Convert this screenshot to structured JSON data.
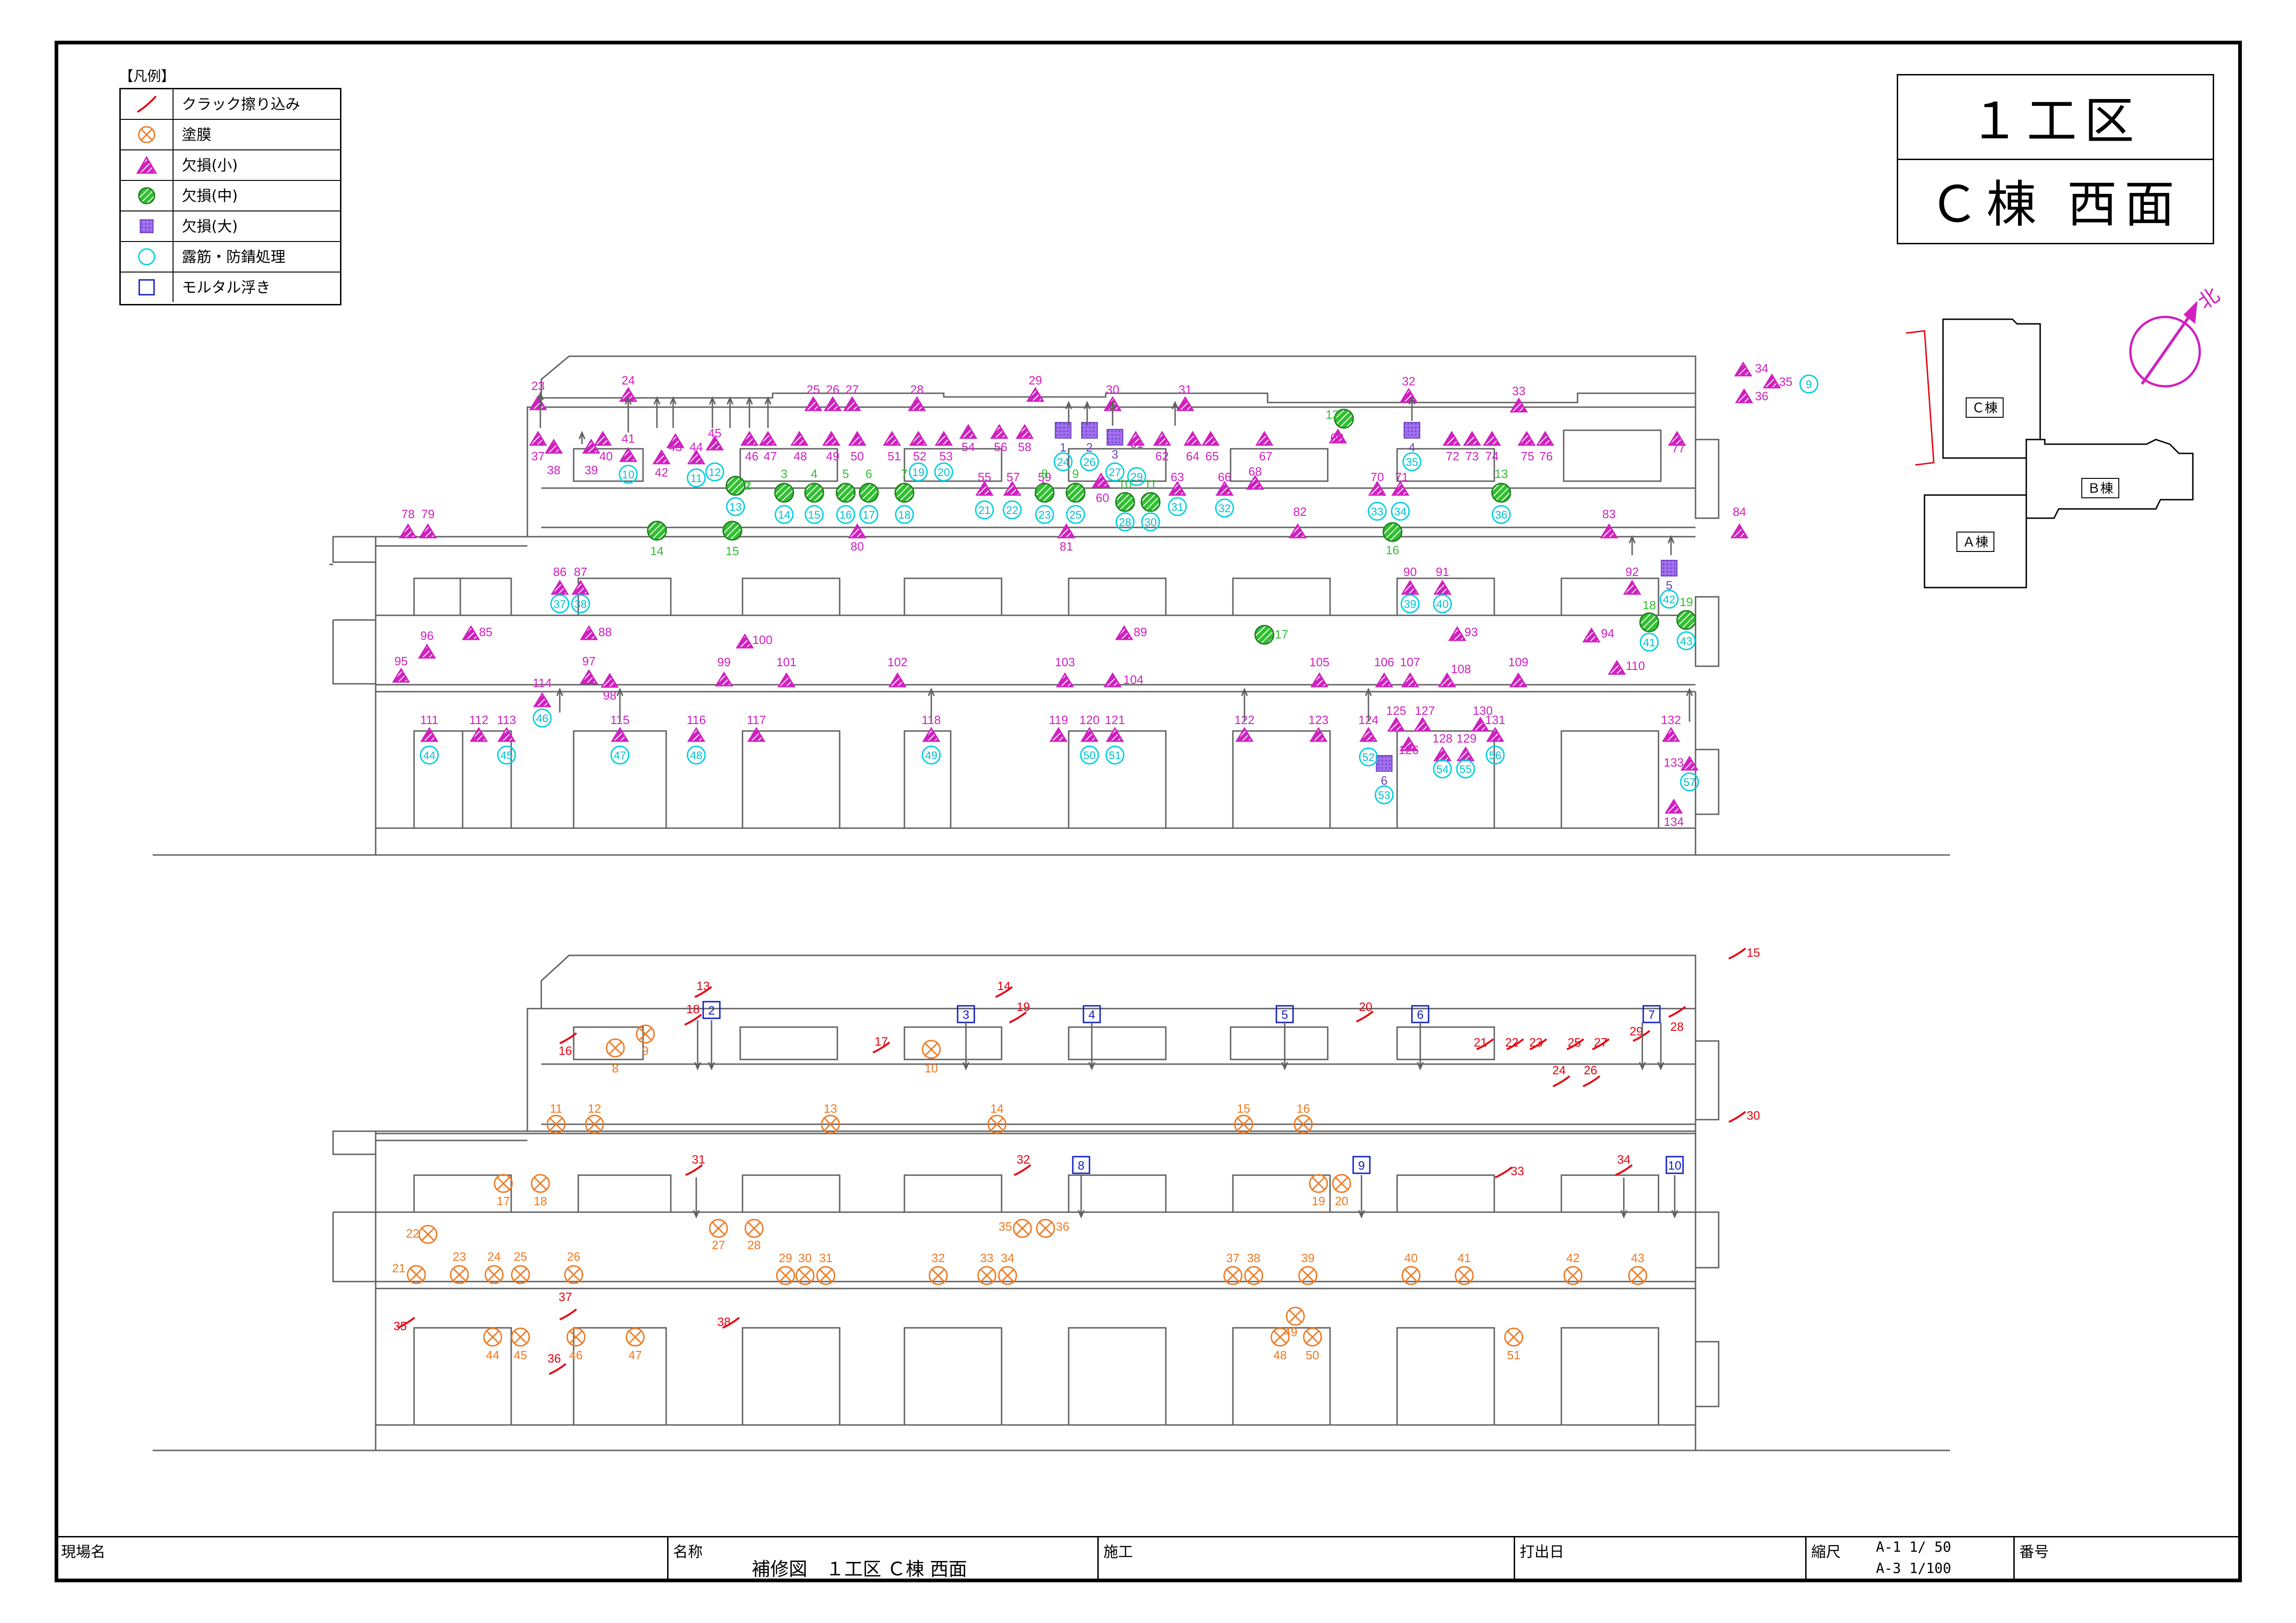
{
  "title": {
    "line1": "１工区",
    "line2": "Ｃ棟 西面"
  },
  "legend": {
    "caption": "【凡例】",
    "items": [
      {
        "label": "クラック擦り込み",
        "icon": "crack-line-icon",
        "color": "#e8000f"
      },
      {
        "label": "塗膜",
        "icon": "circle-x-icon",
        "color": "#f07820"
      },
      {
        "label": "欠損(小)",
        "icon": "triangle-icon",
        "color": "#d020c0"
      },
      {
        "label": "欠損(中)",
        "icon": "green-hatched-circle-icon",
        "color": "#30c030"
      },
      {
        "label": "欠損(大)",
        "icon": "purple-square-icon",
        "color": "#9050e0"
      },
      {
        "label": "露筋・防錆処理",
        "icon": "cyan-circle-icon",
        "color": "#00d0e0"
      },
      {
        "label": "モルタル浮き",
        "icon": "blue-square-icon",
        "color": "#1020c0"
      }
    ]
  },
  "key_plan": {
    "block_c": "Ｃ棟",
    "block_b": "Ｂ棟",
    "block_a": "Ａ棟",
    "north": "北"
  },
  "footer": {
    "site_label": "現場名",
    "name_label": "名称",
    "name_value": "補修図　１工区 Ｃ棟 西面",
    "builder_label": "施工",
    "print_date_label": "打出日",
    "scale_label": "縮尺",
    "scale_a1": "A-1 1/ 50",
    "scale_a3": "A-3 1/100",
    "number_label": "番号"
  },
  "upper_elevation": {
    "small_defect_numbers": [
      "23",
      "24",
      "25",
      "26",
      "27",
      "28",
      "29",
      "30",
      "31",
      "32",
      "33",
      "34",
      "35",
      "36",
      "37",
      "38",
      "39",
      "40",
      "41",
      "42",
      "43",
      "44",
      "45",
      "46",
      "47",
      "48",
      "49",
      "50",
      "51",
      "52",
      "53",
      "54",
      "55",
      "56",
      "57",
      "58",
      "59",
      "60",
      "61",
      "62",
      "63",
      "64",
      "65",
      "66",
      "67",
      "68",
      "69",
      "70",
      "71",
      "72",
      "73",
      "74",
      "75",
      "76",
      "77",
      "78",
      "79",
      "80",
      "81",
      "82",
      "83",
      "84",
      "85",
      "86",
      "87",
      "88",
      "89",
      "90",
      "91",
      "92",
      "93",
      "94",
      "95",
      "96",
      "97",
      "98",
      "99",
      "100",
      "101",
      "102",
      "103",
      "104",
      "105",
      "106",
      "107",
      "108",
      "109",
      "110",
      "111",
      "112",
      "113",
      "114",
      "115",
      "116",
      "117",
      "118",
      "119",
      "120",
      "121",
      "122",
      "123",
      "124",
      "125",
      "126",
      "127",
      "128",
      "129",
      "130",
      "131",
      "132",
      "133",
      "134"
    ],
    "medium_defect_numbers": [
      "1",
      "2",
      "3",
      "4",
      "5",
      "6",
      "7",
      "8",
      "9",
      "10",
      "11",
      "12",
      "13",
      "14",
      "15",
      "16",
      "17",
      "18",
      "19"
    ],
    "large_defect_numbers": [
      "1",
      "2",
      "3",
      "4",
      "5",
      "6"
    ],
    "rebar_numbers": [
      "9",
      "10",
      "11",
      "12",
      "13",
      "14",
      "15",
      "16",
      "17",
      "18",
      "19",
      "20",
      "21",
      "22",
      "23",
      "24",
      "25",
      "26",
      "27",
      "28",
      "29",
      "30",
      "31",
      "32",
      "33",
      "34",
      "35",
      "36",
      "37",
      "38",
      "39",
      "40",
      "41",
      "42",
      "43",
      "44",
      "45",
      "46",
      "47",
      "48",
      "49",
      "50",
      "51",
      "52",
      "53",
      "54",
      "55",
      "56",
      "57"
    ]
  },
  "lower_elevation": {
    "crack_numbers": [
      "13",
      "14",
      "15",
      "16",
      "17",
      "18",
      "19",
      "20",
      "21",
      "22",
      "23",
      "24",
      "25",
      "26",
      "27",
      "28",
      "29",
      "30",
      "31",
      "32",
      "33",
      "34",
      "35",
      "36",
      "37",
      "38"
    ],
    "coating_numbers": [
      "8",
      "9",
      "10",
      "11",
      "12",
      "13",
      "14",
      "15",
      "16",
      "17",
      "18",
      "19",
      "20",
      "21",
      "22",
      "23",
      "24",
      "25",
      "26",
      "27",
      "28",
      "29",
      "30",
      "31",
      "32",
      "33",
      "34",
      "35",
      "36",
      "37",
      "38",
      "39",
      "40",
      "41",
      "42",
      "43",
      "44",
      "45",
      "46",
      "47",
      "48",
      "49",
      "50",
      "51"
    ],
    "mortar_numbers": [
      "2",
      "3",
      "4",
      "5",
      "6",
      "7",
      "8",
      "9",
      "10"
    ]
  }
}
